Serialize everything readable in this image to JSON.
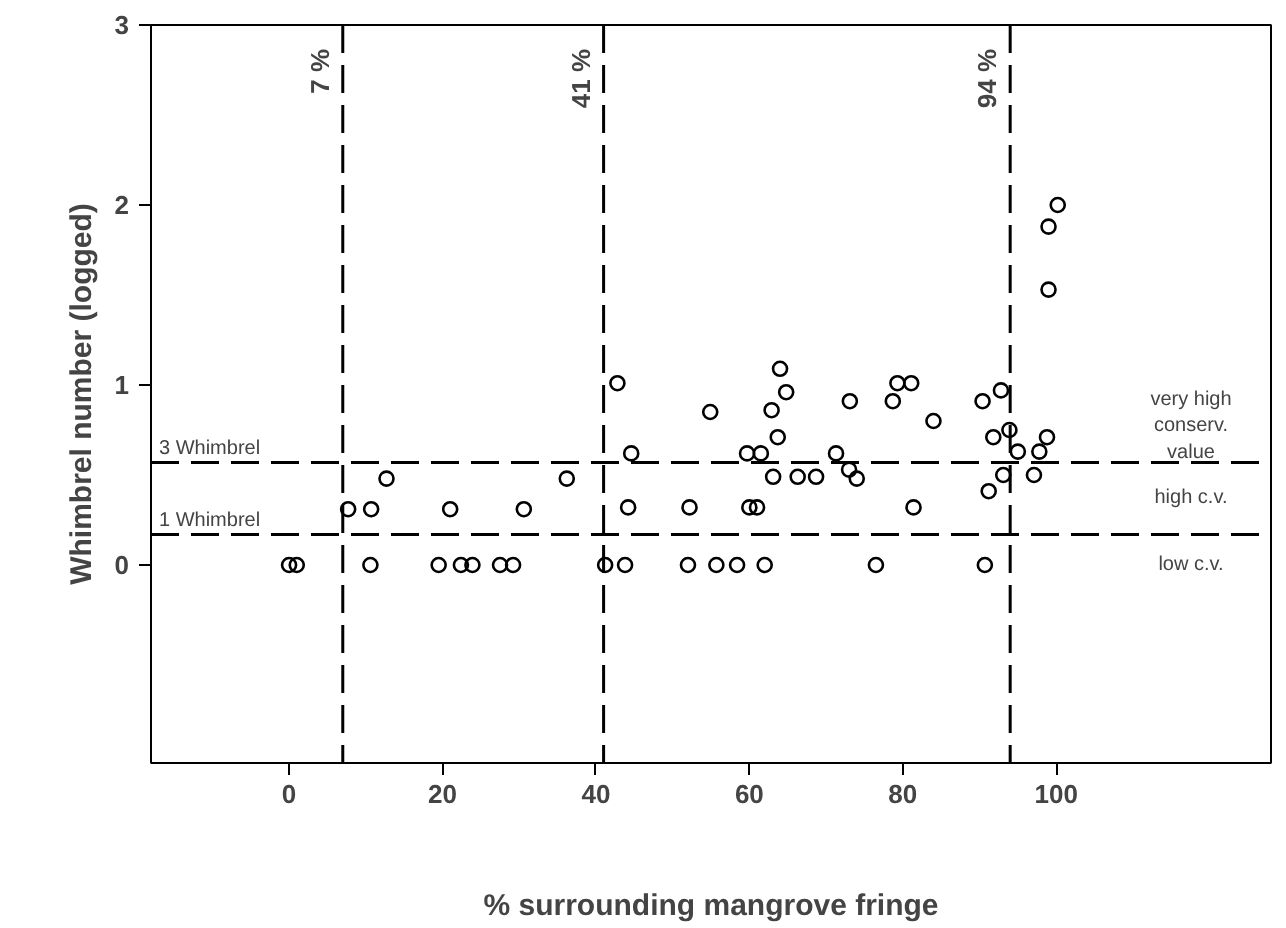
{
  "chart_data": {
    "type": "scatter",
    "xlabel": "% surrounding mangrove fringe",
    "ylabel": "Whimbrel number (logged)",
    "xlim": [
      -18,
      128
    ],
    "ylim": [
      -1.1,
      3
    ],
    "xticks": [
      0,
      20,
      40,
      60,
      80,
      100
    ],
    "yticks": [
      0,
      1,
      2,
      3
    ],
    "grid": false,
    "marker": "circle",
    "series": [
      {
        "color": "#000000",
        "x": [
          0,
          1,
          7.7,
          10.7,
          10.6,
          12.7,
          19.5,
          21,
          22.4,
          23.9,
          27.5,
          29.2,
          30.6,
          36.2,
          41.2,
          42.8,
          43.8,
          44.2,
          44.6,
          52.2,
          52,
          54.9,
          55.7,
          58.4,
          59.7,
          61.5,
          60,
          61,
          62,
          63.1,
          66.3,
          68.7,
          63.7,
          62.9,
          64.8,
          64,
          71.3,
          73,
          74,
          73.1,
          76.5,
          78.7,
          79.3,
          81.1,
          81.4,
          84,
          90.4,
          92.8,
          91.8,
          93.9,
          91.2,
          93.1,
          90.7,
          95,
          97.1,
          97.8,
          98.8,
          99,
          99,
          100.2
        ],
        "values": [
          0,
          0,
          0.31,
          0.31,
          0,
          0.48,
          0,
          0.31,
          0,
          0,
          0,
          0,
          0.31,
          0.48,
          0,
          1.01,
          0,
          0.32,
          0.62,
          0.32,
          0,
          0.85,
          0,
          0,
          0.62,
          0.62,
          0.32,
          0.32,
          0,
          0.49,
          0.49,
          0.49,
          0.71,
          0.86,
          0.96,
          1.09,
          0.62,
          0.53,
          0.48,
          0.91,
          0,
          0.91,
          1.01,
          1.01,
          0.32,
          0.8,
          0.91,
          0.97,
          0.71,
          0.75,
          0.41,
          0.5,
          0,
          0.63,
          0.5,
          0.63,
          0.71,
          1.53,
          1.88,
          2.0
        ]
      }
    ],
    "ref_lines": [
      {
        "axis": "x",
        "value": 7,
        "label": "7 %",
        "line_style": "dashed"
      },
      {
        "axis": "x",
        "value": 41,
        "label": "41 %",
        "line_style": "dashed"
      },
      {
        "axis": "x",
        "value": 94,
        "label": "94 %",
        "line_style": "dashed"
      },
      {
        "axis": "y",
        "value": 0.57,
        "label": "3 Whimbrel",
        "line_style": "dashed"
      },
      {
        "axis": "y",
        "value": 0.17,
        "label": "1 Whimbrel",
        "line_style": "dashed"
      }
    ],
    "annotations": [
      "very high\nconserv.\nvalue",
      "high c.v.",
      "low c.v."
    ]
  }
}
